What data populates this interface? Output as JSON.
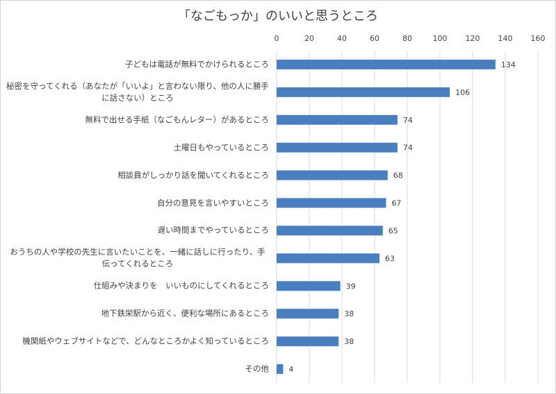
{
  "chart_data": {
    "type": "barh",
    "title": "「なごもっか」のいいと思うところ",
    "categories": [
      "子どもは電話が無料でかけられるところ",
      "秘密を守ってくれる（あなたが「いいよ」と言わない限り、他の人に勝手に話さない）ところ",
      "無料で出せる手紙（なごもんレター）があるところ",
      "土曜日もやっているところ",
      "相談員がしっかり話を聞いてくれるところ",
      "自分の意見を言いやすいところ",
      "遅い時間までやっているところ",
      "おうちの人や学校の先生に言いたいことを、一緒に話しに行ったり、手伝ってくれるところ",
      "仕組みや決まりを　いいものにしてくれるところ",
      "地下鉄栄駅から近く、便利な場所にあるところ",
      "機関紙やウェブサイトなどで、どんなところかよく知っているところ",
      "その他"
    ],
    "values": [
      134,
      106,
      74,
      74,
      68,
      67,
      65,
      63,
      39,
      38,
      38,
      4
    ],
    "color": "#4a7ebf",
    "xlim": [
      0,
      160
    ],
    "xticks": [
      0,
      20,
      40,
      60,
      80,
      100,
      120,
      140,
      160
    ],
    "grid": true
  }
}
